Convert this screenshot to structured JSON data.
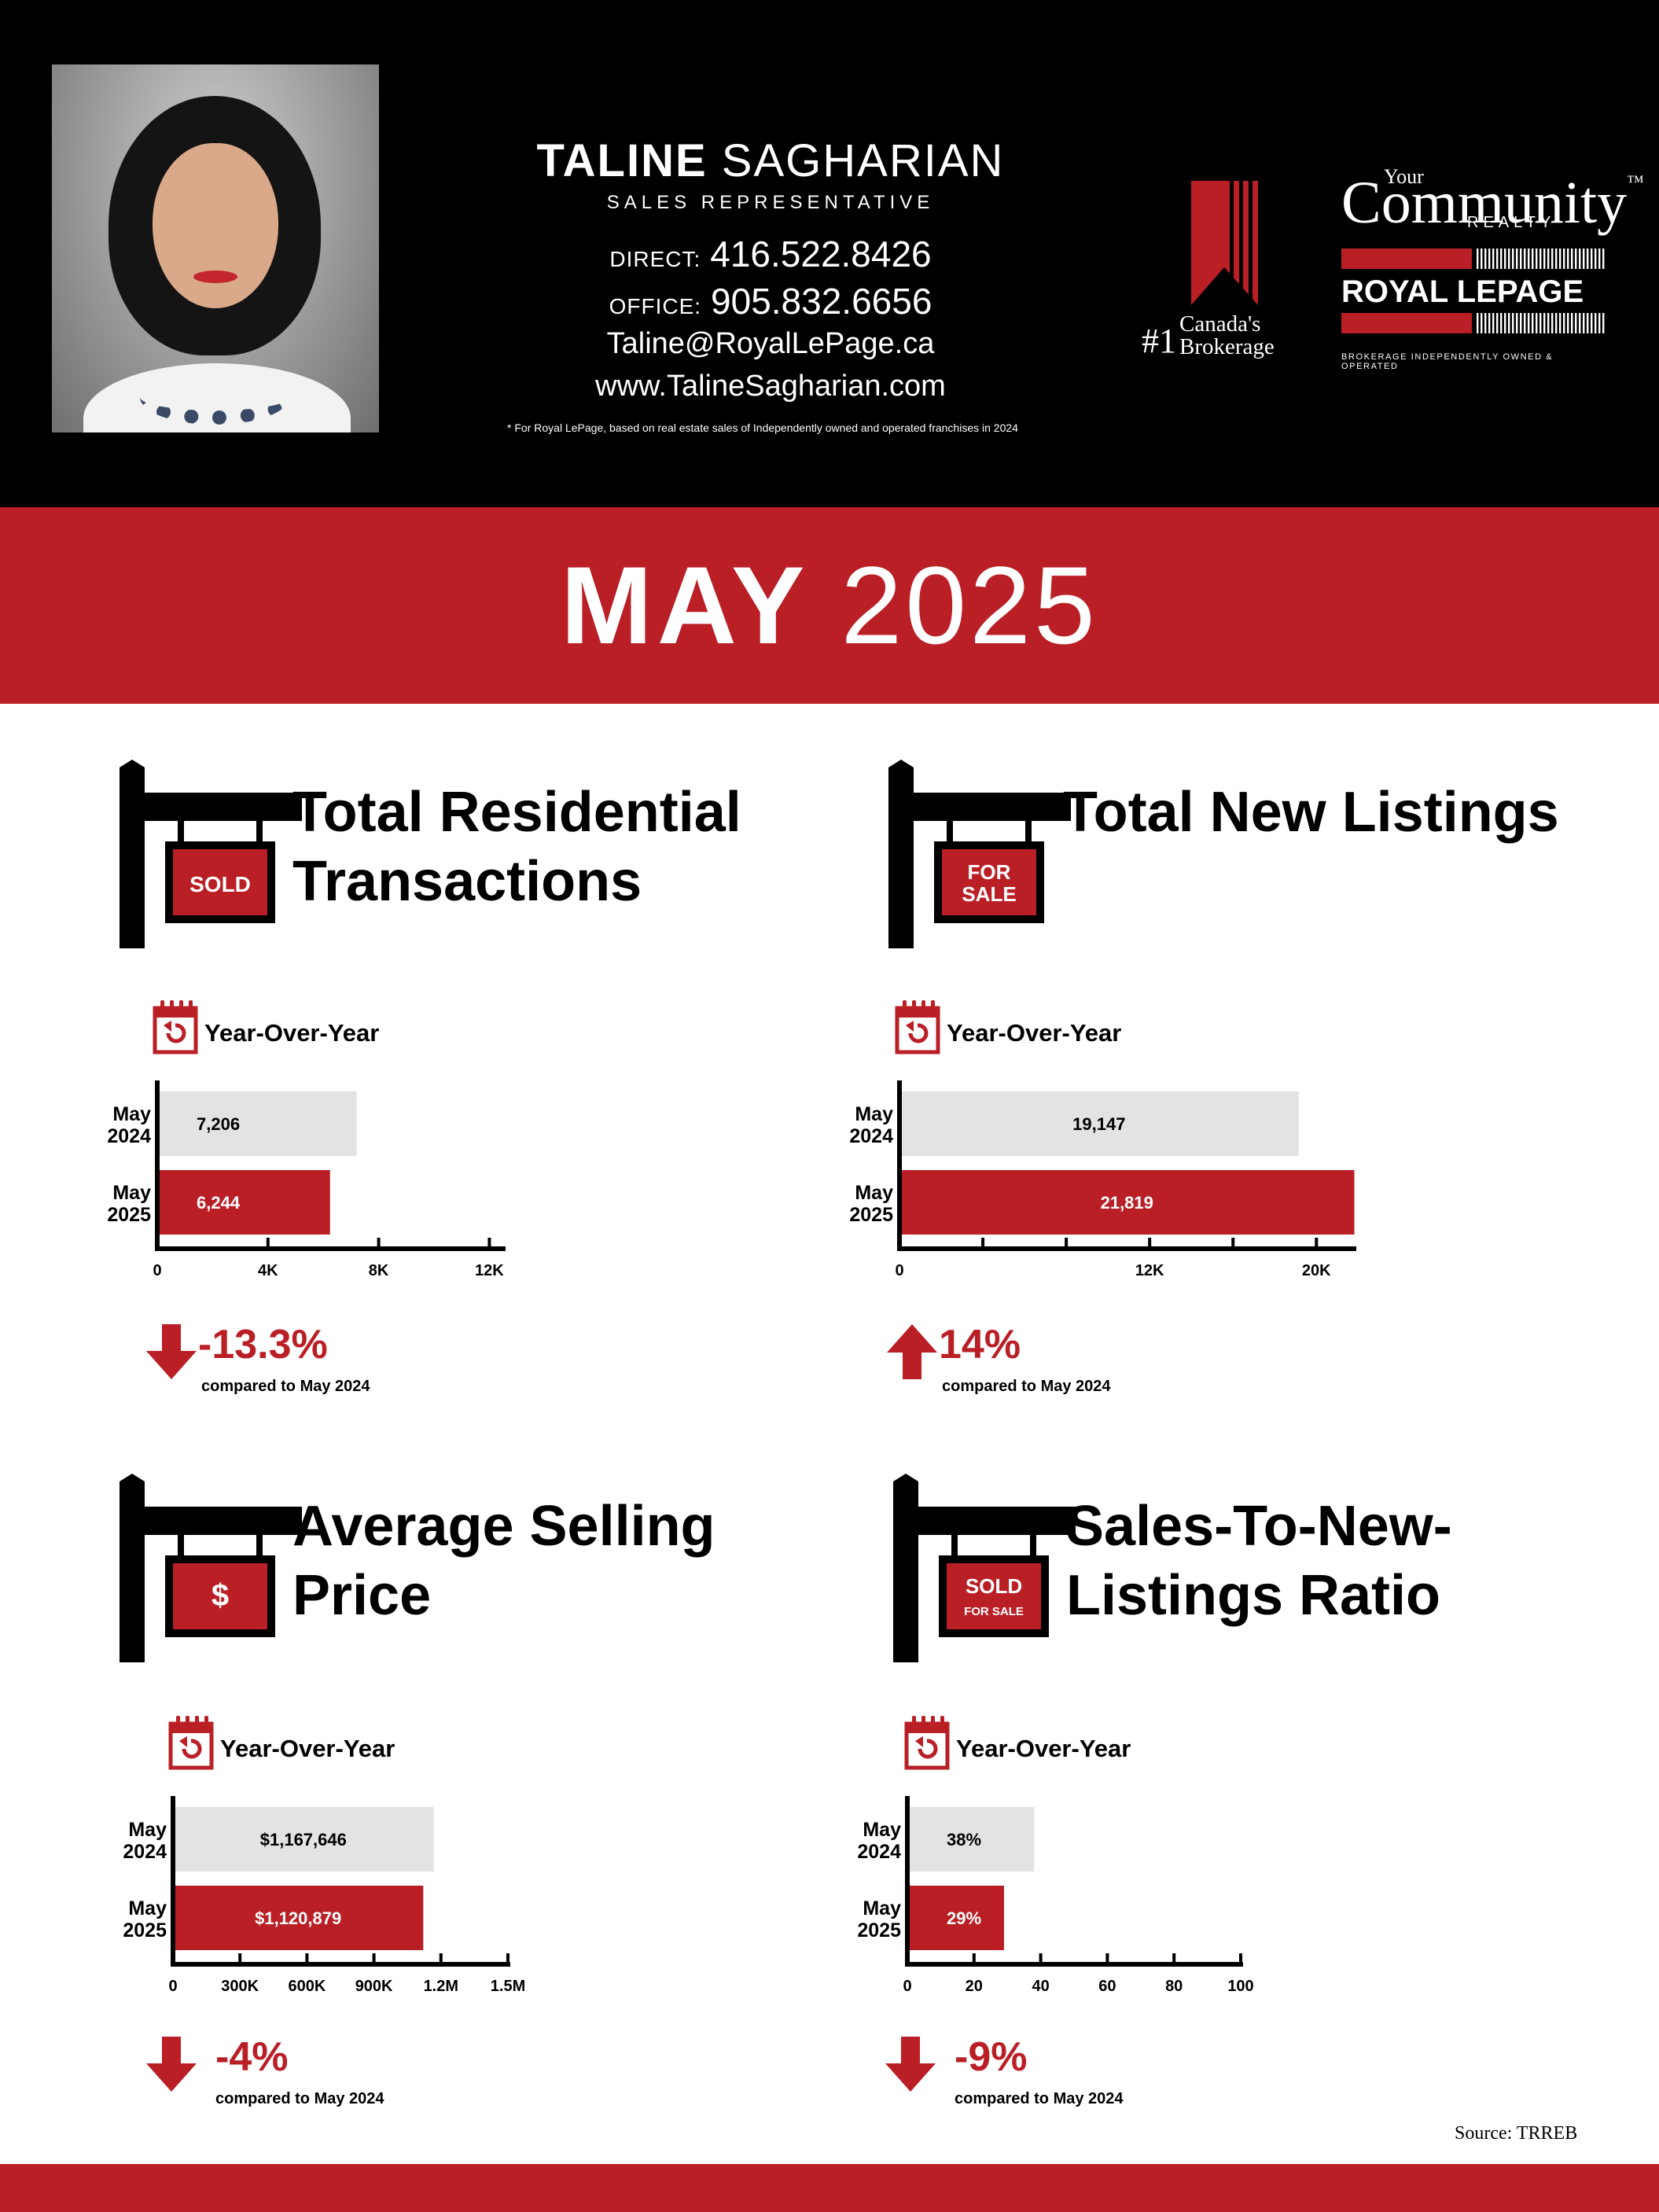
{
  "agent": {
    "first_name": "TALINE",
    "last_name": "SAGHARIAN",
    "title": "SALES REPRESENTATIVE",
    "direct_label": "DIRECT:",
    "direct_phone": "416.522.8426",
    "office_label": "OFFICE:",
    "office_phone": "905.832.6656",
    "email": "Taline@RoyalLePage.ca",
    "website": "www.TalineSagharian.com",
    "disclaimer": "* For Royal LePage, based on real estate sales of Independently owned and operated franchises in 2024"
  },
  "brokerage": {
    "rank_prefix": "#1",
    "rank_line1": "Canada's",
    "rank_line2": "Brokerage",
    "your": "Your",
    "community": "Community",
    "tm": "™",
    "realty": "REALTY",
    "royal_lepage": "ROYAL LEPAGE",
    "tagline": "BROKERAGE INDEPENDENTLY OWNED & OPERATED"
  },
  "banner": {
    "month": "MAY",
    "year": "2025"
  },
  "colors": {
    "accent": "#ba1f26",
    "prior_bar": "#e3e3e3",
    "header_bg": "#000000"
  },
  "yoy_label": "Year-Over-Year",
  "panels": [
    {
      "title_line1": "Total Residential",
      "title_line2": "Transactions",
      "sign_icon": "sold-sign-icon",
      "sign_text": [
        "SOLD"
      ],
      "delta": "-13.3%",
      "direction": "down",
      "compared": "compared to May 2024"
    },
    {
      "title_line1": "Total New Listings",
      "title_line2": "",
      "sign_icon": "for-sale-sign-icon",
      "sign_text": [
        "FOR",
        "SALE"
      ],
      "delta": "14%",
      "direction": "up",
      "compared": "compared to May 2024"
    },
    {
      "title_line1": "Average Selling",
      "title_line2": "Price",
      "sign_icon": "dollar-sign-icon",
      "sign_text": [
        "$"
      ],
      "delta": "-4%",
      "direction": "down",
      "compared": "compared to May 2024"
    },
    {
      "title_line1": "Sales-To-New-",
      "title_line2": "Listings Ratio",
      "sign_icon": "sold-for-sale-sign-icon",
      "sign_text": [
        "SOLD",
        "FOR SALE"
      ],
      "delta": "-9%",
      "direction": "down",
      "compared": "compared to May 2024"
    }
  ],
  "chart_data": [
    {
      "type": "bar",
      "orientation": "horizontal",
      "categories": [
        [
          "May",
          "2024"
        ],
        [
          "May",
          "2025"
        ]
      ],
      "values": [
        7206,
        6244
      ],
      "value_labels": [
        "7,206",
        "6,244"
      ],
      "xlim": [
        0,
        12500
      ],
      "ticks": [
        0,
        4000,
        8000,
        12000
      ],
      "tick_labels": [
        "0",
        "4K",
        "8K",
        "12K"
      ],
      "minor_ticks": []
    },
    {
      "type": "bar",
      "orientation": "horizontal",
      "categories": [
        [
          "May",
          "2024"
        ],
        [
          "May",
          "2025"
        ]
      ],
      "values": [
        19147,
        21819
      ],
      "value_labels": [
        "19,147",
        "21,819"
      ],
      "xlim": [
        0,
        21800
      ],
      "ticks": [
        0,
        12000,
        20000
      ],
      "tick_labels": [
        "0",
        "12K",
        "20K"
      ],
      "minor_ticks": [
        4000,
        8000,
        16000
      ]
    },
    {
      "type": "bar",
      "orientation": "horizontal",
      "categories": [
        [
          "May",
          "2024"
        ],
        [
          "May",
          "2025"
        ]
      ],
      "values": [
        1167646,
        1120879
      ],
      "value_labels": [
        "$1,167,646",
        "$1,120,879"
      ],
      "xlim": [
        0,
        1500000
      ],
      "ticks": [
        0,
        300000,
        600000,
        900000,
        1200000,
        1500000
      ],
      "tick_labels": [
        "0",
        "300K",
        "600K",
        "900K",
        "1.2M",
        "1.5M"
      ],
      "minor_ticks": []
    },
    {
      "type": "bar",
      "orientation": "horizontal",
      "categories": [
        [
          "May",
          "2024"
        ],
        [
          "May",
          "2025"
        ]
      ],
      "values": [
        38,
        29
      ],
      "value_labels": [
        "38%",
        "29%"
      ],
      "xlim": [
        0,
        100
      ],
      "ticks": [
        0,
        20,
        40,
        60,
        80,
        100
      ],
      "tick_labels": [
        "0",
        "20",
        "40",
        "60",
        "80",
        "100"
      ],
      "minor_ticks": []
    }
  ],
  "source": "Source: TRREB"
}
